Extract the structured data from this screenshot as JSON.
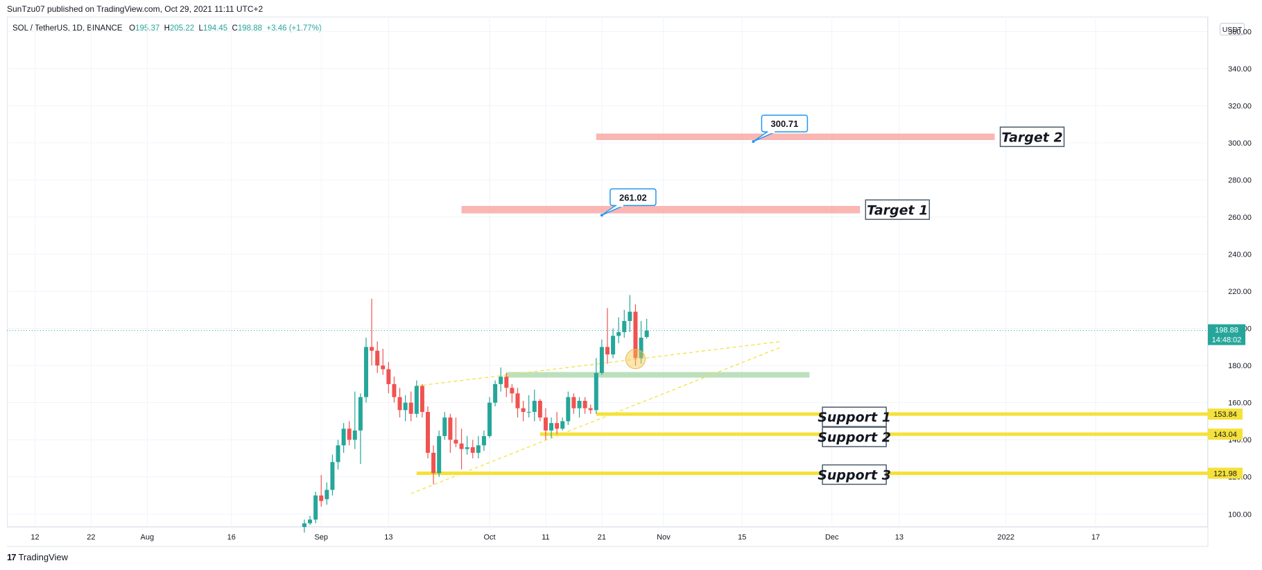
{
  "header": {
    "published_text": "SunTzu07 published on TradingView.com, Oct 29, 2021 11:11 UTC+2"
  },
  "legend": {
    "symbol": "SOL / TetherUS, 1D, BINANCE",
    "open_label": "O",
    "open": "195.37",
    "high_label": "H",
    "high": "205.22",
    "low_label": "L",
    "low": "194.45",
    "close_label": "C",
    "close": "198.88",
    "change": "+3.46 (+1.77%)"
  },
  "currency_button": "USDT",
  "footer": {
    "logo": "17",
    "brand": "TradingView"
  },
  "colors": {
    "up": "#26a69a",
    "down": "#ef5350",
    "target_zone": "#f8a9a5",
    "support_line": "#f5e13a",
    "support_zone": "#a5d6a7",
    "trend": "#f5e13a",
    "callout_border": "#2196f3",
    "last_price": "#26a69a"
  },
  "chart_data": {
    "type": "candlestick",
    "symbol": "SOL / TetherUS",
    "interval": "1D",
    "exchange": "BINANCE",
    "y_range": [
      93,
      368
    ],
    "y_ticks": [
      100,
      120,
      140,
      160,
      180,
      200,
      220,
      240,
      260,
      280,
      300,
      320,
      340,
      360
    ],
    "x_ticks": [
      {
        "label": "12",
        "date": "2021-07-12"
      },
      {
        "label": "22",
        "date": "2021-07-22"
      },
      {
        "label": "Aug",
        "date": "2021-08-01"
      },
      {
        "label": "16",
        "date": "2021-08-16"
      },
      {
        "label": "Sep",
        "date": "2021-09-01"
      },
      {
        "label": "13",
        "date": "2021-09-13"
      },
      {
        "label": "Oct",
        "date": "2021-10-01"
      },
      {
        "label": "11",
        "date": "2021-10-11"
      },
      {
        "label": "21",
        "date": "2021-10-21"
      },
      {
        "label": "Nov",
        "date": "2021-11-01"
      },
      {
        "label": "15",
        "date": "2021-11-15"
      },
      {
        "label": "Dec",
        "date": "2021-12-01"
      },
      {
        "label": "13",
        "date": "2021-12-13"
      },
      {
        "label": "2022",
        "date": "2022-01-01"
      },
      {
        "label": "17",
        "date": "2022-01-17"
      }
    ],
    "x_range": [
      "2021-07-07",
      "2022-02-06"
    ],
    "candles": [
      {
        "date": "2021-08-29",
        "o": 93,
        "h": 97,
        "l": 90,
        "c": 95
      },
      {
        "date": "2021-08-30",
        "o": 95,
        "h": 99,
        "l": 94,
        "c": 97
      },
      {
        "date": "2021-08-31",
        "o": 97,
        "h": 112,
        "l": 95,
        "c": 110
      },
      {
        "date": "2021-09-01",
        "o": 110,
        "h": 121,
        "l": 104,
        "c": 107
      },
      {
        "date": "2021-09-02",
        "o": 108,
        "h": 117,
        "l": 105,
        "c": 113
      },
      {
        "date": "2021-09-03",
        "o": 113,
        "h": 132,
        "l": 110,
        "c": 128
      },
      {
        "date": "2021-09-04",
        "o": 128,
        "h": 140,
        "l": 124,
        "c": 137
      },
      {
        "date": "2021-09-05",
        "o": 137,
        "h": 149,
        "l": 133,
        "c": 146
      },
      {
        "date": "2021-09-06",
        "o": 146,
        "h": 150,
        "l": 137,
        "c": 140
      },
      {
        "date": "2021-09-07",
        "o": 140,
        "h": 166,
        "l": 135,
        "c": 145
      },
      {
        "date": "2021-09-08",
        "o": 145,
        "h": 165,
        "l": 127,
        "c": 163
      },
      {
        "date": "2021-09-09",
        "o": 163,
        "h": 195,
        "l": 160,
        "c": 190
      },
      {
        "date": "2021-09-10",
        "o": 190,
        "h": 216,
        "l": 180,
        "c": 188
      },
      {
        "date": "2021-09-11",
        "o": 188,
        "h": 193,
        "l": 176,
        "c": 180
      },
      {
        "date": "2021-09-12",
        "o": 180,
        "h": 189,
        "l": 175,
        "c": 178
      },
      {
        "date": "2021-09-13",
        "o": 178,
        "h": 182,
        "l": 165,
        "c": 170
      },
      {
        "date": "2021-09-14",
        "o": 170,
        "h": 174,
        "l": 160,
        "c": 163
      },
      {
        "date": "2021-09-15",
        "o": 163,
        "h": 168,
        "l": 152,
        "c": 156
      },
      {
        "date": "2021-09-16",
        "o": 156,
        "h": 164,
        "l": 150,
        "c": 160
      },
      {
        "date": "2021-09-17",
        "o": 160,
        "h": 166,
        "l": 150,
        "c": 154
      },
      {
        "date": "2021-09-18",
        "o": 154,
        "h": 172,
        "l": 152,
        "c": 169
      },
      {
        "date": "2021-09-19",
        "o": 169,
        "h": 170,
        "l": 152,
        "c": 155
      },
      {
        "date": "2021-09-20",
        "o": 155,
        "h": 158,
        "l": 130,
        "c": 133
      },
      {
        "date": "2021-09-21",
        "o": 133,
        "h": 137,
        "l": 116,
        "c": 122
      },
      {
        "date": "2021-09-22",
        "o": 122,
        "h": 145,
        "l": 120,
        "c": 142
      },
      {
        "date": "2021-09-23",
        "o": 142,
        "h": 155,
        "l": 140,
        "c": 152
      },
      {
        "date": "2021-09-24",
        "o": 152,
        "h": 154,
        "l": 133,
        "c": 140
      },
      {
        "date": "2021-09-25",
        "o": 140,
        "h": 152,
        "l": 136,
        "c": 138
      },
      {
        "date": "2021-09-26",
        "o": 138,
        "h": 146,
        "l": 124,
        "c": 135
      },
      {
        "date": "2021-09-27",
        "o": 135,
        "h": 142,
        "l": 132,
        "c": 136
      },
      {
        "date": "2021-09-28",
        "o": 136,
        "h": 140,
        "l": 130,
        "c": 133
      },
      {
        "date": "2021-09-29",
        "o": 133,
        "h": 142,
        "l": 130,
        "c": 137
      },
      {
        "date": "2021-09-30",
        "o": 137,
        "h": 145,
        "l": 134,
        "c": 142
      },
      {
        "date": "2021-10-01",
        "o": 142,
        "h": 163,
        "l": 141,
        "c": 160
      },
      {
        "date": "2021-10-02",
        "o": 160,
        "h": 172,
        "l": 158,
        "c": 170
      },
      {
        "date": "2021-10-03",
        "o": 170,
        "h": 179,
        "l": 166,
        "c": 174
      },
      {
        "date": "2021-10-04",
        "o": 174,
        "h": 176,
        "l": 163,
        "c": 168
      },
      {
        "date": "2021-10-05",
        "o": 168,
        "h": 170,
        "l": 160,
        "c": 165
      },
      {
        "date": "2021-10-06",
        "o": 165,
        "h": 168,
        "l": 152,
        "c": 157
      },
      {
        "date": "2021-10-07",
        "o": 157,
        "h": 161,
        "l": 150,
        "c": 155
      },
      {
        "date": "2021-10-08",
        "o": 155,
        "h": 164,
        "l": 152,
        "c": 155
      },
      {
        "date": "2021-10-09",
        "o": 155,
        "h": 167,
        "l": 150,
        "c": 161
      },
      {
        "date": "2021-10-10",
        "o": 161,
        "h": 162,
        "l": 150,
        "c": 152
      },
      {
        "date": "2021-10-11",
        "o": 152,
        "h": 157,
        "l": 140,
        "c": 145
      },
      {
        "date": "2021-10-12",
        "o": 145,
        "h": 152,
        "l": 141,
        "c": 149
      },
      {
        "date": "2021-10-13",
        "o": 149,
        "h": 155,
        "l": 143,
        "c": 146
      },
      {
        "date": "2021-10-14",
        "o": 146,
        "h": 152,
        "l": 145,
        "c": 150
      },
      {
        "date": "2021-10-15",
        "o": 150,
        "h": 166,
        "l": 148,
        "c": 163
      },
      {
        "date": "2021-10-16",
        "o": 163,
        "h": 165,
        "l": 154,
        "c": 157
      },
      {
        "date": "2021-10-17",
        "o": 157,
        "h": 163,
        "l": 152,
        "c": 161
      },
      {
        "date": "2021-10-18",
        "o": 161,
        "h": 163,
        "l": 154,
        "c": 157
      },
      {
        "date": "2021-10-19",
        "o": 157,
        "h": 159,
        "l": 154,
        "c": 156
      },
      {
        "date": "2021-10-20",
        "o": 156,
        "h": 184,
        "l": 154,
        "c": 176
      },
      {
        "date": "2021-10-21",
        "o": 176,
        "h": 194,
        "l": 175,
        "c": 190
      },
      {
        "date": "2021-10-22",
        "o": 190,
        "h": 211,
        "l": 181,
        "c": 186
      },
      {
        "date": "2021-10-23",
        "o": 186,
        "h": 200,
        "l": 184,
        "c": 196
      },
      {
        "date": "2021-10-24",
        "o": 196,
        "h": 206,
        "l": 192,
        "c": 198
      },
      {
        "date": "2021-10-25",
        "o": 198,
        "h": 210,
        "l": 195,
        "c": 204
      },
      {
        "date": "2021-10-26",
        "o": 204,
        "h": 218,
        "l": 198,
        "c": 209
      },
      {
        "date": "2021-10-27",
        "o": 209,
        "h": 213,
        "l": 180,
        "c": 184
      },
      {
        "date": "2021-10-28",
        "o": 184,
        "h": 204,
        "l": 181,
        "c": 195
      },
      {
        "date": "2021-10-29",
        "o": 195.37,
        "h": 205.22,
        "l": 194.45,
        "c": 198.88
      }
    ],
    "last_price": {
      "value": 198.88,
      "label": "198.88",
      "countdown": "14:48:02"
    },
    "target_zones": [
      {
        "label": "Target 1",
        "low": 262,
        "high": 266,
        "start": "2021-09-26",
        "end": "2021-12-06",
        "label_date": "2021-12-07"
      },
      {
        "label": "Target 2",
        "low": 301.5,
        "high": 305,
        "start": "2021-10-20",
        "end": "2021-12-30",
        "label_date": "2021-12-31"
      }
    ],
    "callouts": [
      {
        "text": "261.02",
        "value": 261.02,
        "point_date": "2021-10-21",
        "point_value": 261.02
      },
      {
        "text": "300.71",
        "value": 300.71,
        "point_date": "2021-11-17",
        "point_value": 300.71
      }
    ],
    "support_zone": {
      "low": 173.5,
      "high": 176.5,
      "start": "2021-10-04",
      "end": "2021-11-27"
    },
    "supports": [
      {
        "label": "Support 1",
        "value": 153.84,
        "tag": "153.84",
        "start": "2021-10-20",
        "label_date": "2021-12-05"
      },
      {
        "label": "Support 2",
        "value": 143.04,
        "tag": "143.04",
        "start": "2021-10-10",
        "label_date": "2021-12-05"
      },
      {
        "label": "Support 3",
        "value": 121.98,
        "tag": "121.98",
        "start": "2021-09-18",
        "label_date": "2021-12-05"
      }
    ],
    "trendlines": [
      {
        "from_date": "2021-09-17",
        "from_value": 111,
        "to_date": "2021-11-22",
        "to_value": 190
      },
      {
        "from_date": "2021-09-18",
        "from_value": 169,
        "to_date": "2021-11-22",
        "to_value": 193
      }
    ],
    "marker": {
      "date": "2021-10-27",
      "value": 182
    }
  }
}
